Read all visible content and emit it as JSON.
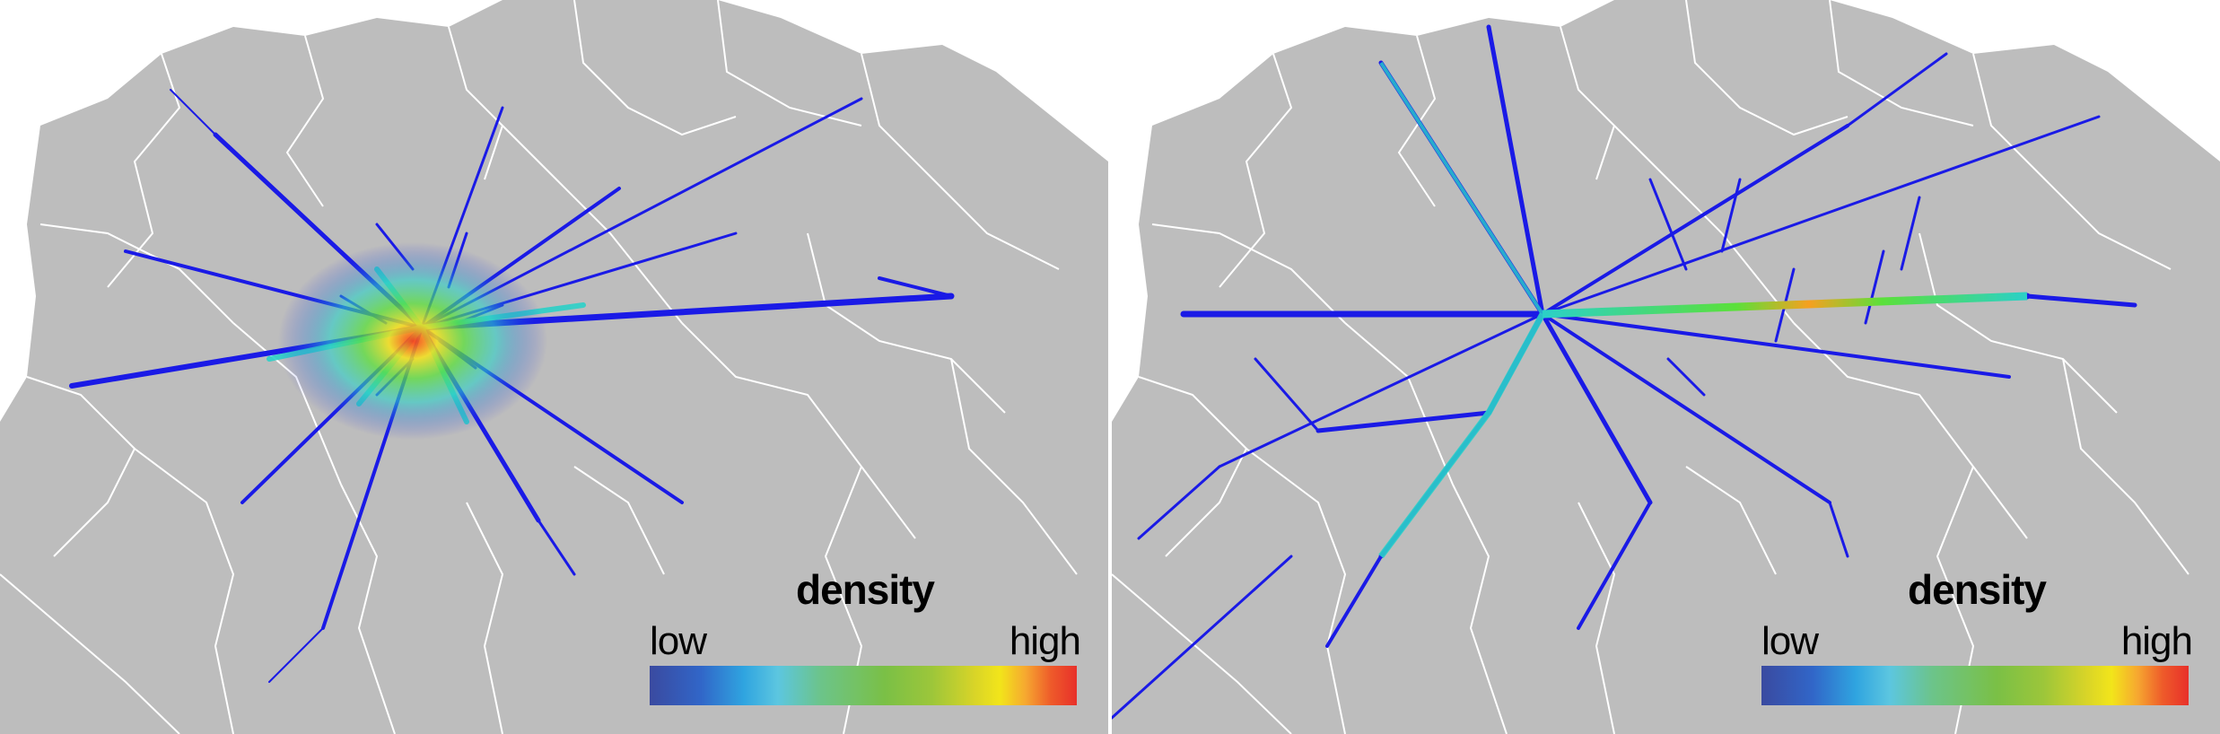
{
  "panels": [
    {
      "id": "left",
      "legend": {
        "title": "density",
        "low_label": "low",
        "high_label": "high"
      }
    },
    {
      "id": "right",
      "legend": {
        "title": "density",
        "low_label": "low",
        "high_label": "high"
      }
    }
  ],
  "colors": {
    "land": "#bdbdbd",
    "boundary": "#ffffff",
    "flow_low": "#1a1ae6",
    "flow_mid": "#2bd0c8",
    "flow_medium_high": "#5be03a",
    "flow_high": "#ff3a14"
  }
}
